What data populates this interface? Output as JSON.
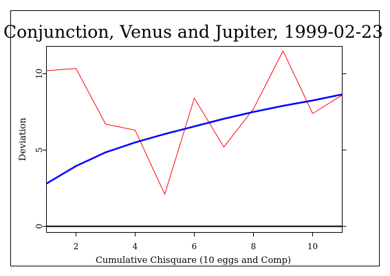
{
  "chart_data": {
    "type": "line",
    "title": "Conjunction, Venus and Jupiter, 1999-02-23",
    "xlabel": "Cumulative Chisquare (10 eggs and Comp)",
    "ylabel": "Deviation",
    "xlim": [
      1,
      11
    ],
    "ylim": [
      -0.4,
      11.8
    ],
    "xticks": [
      2,
      4,
      6,
      8,
      10
    ],
    "yticks": [
      0,
      5,
      10
    ],
    "grid": false,
    "series": [
      {
        "color": "#ff0000",
        "x": [
          1,
          2,
          3,
          4,
          5,
          6,
          7,
          8,
          9,
          10,
          11
        ],
        "y": [
          10.2,
          10.35,
          6.7,
          6.3,
          2.1,
          8.4,
          5.2,
          7.7,
          11.5,
          7.4,
          8.6
        ]
      },
      {
        "color": "#0000ff",
        "x": [
          1,
          2,
          3,
          4,
          5,
          6,
          7,
          8,
          9,
          10,
          11
        ],
        "y": [
          2.8,
          3.95,
          4.85,
          5.5,
          6.05,
          6.55,
          7.05,
          7.5,
          7.9,
          8.25,
          8.65
        ]
      },
      {
        "color": "#000000",
        "x": [
          1,
          11
        ],
        "y": [
          0,
          0
        ]
      }
    ]
  }
}
